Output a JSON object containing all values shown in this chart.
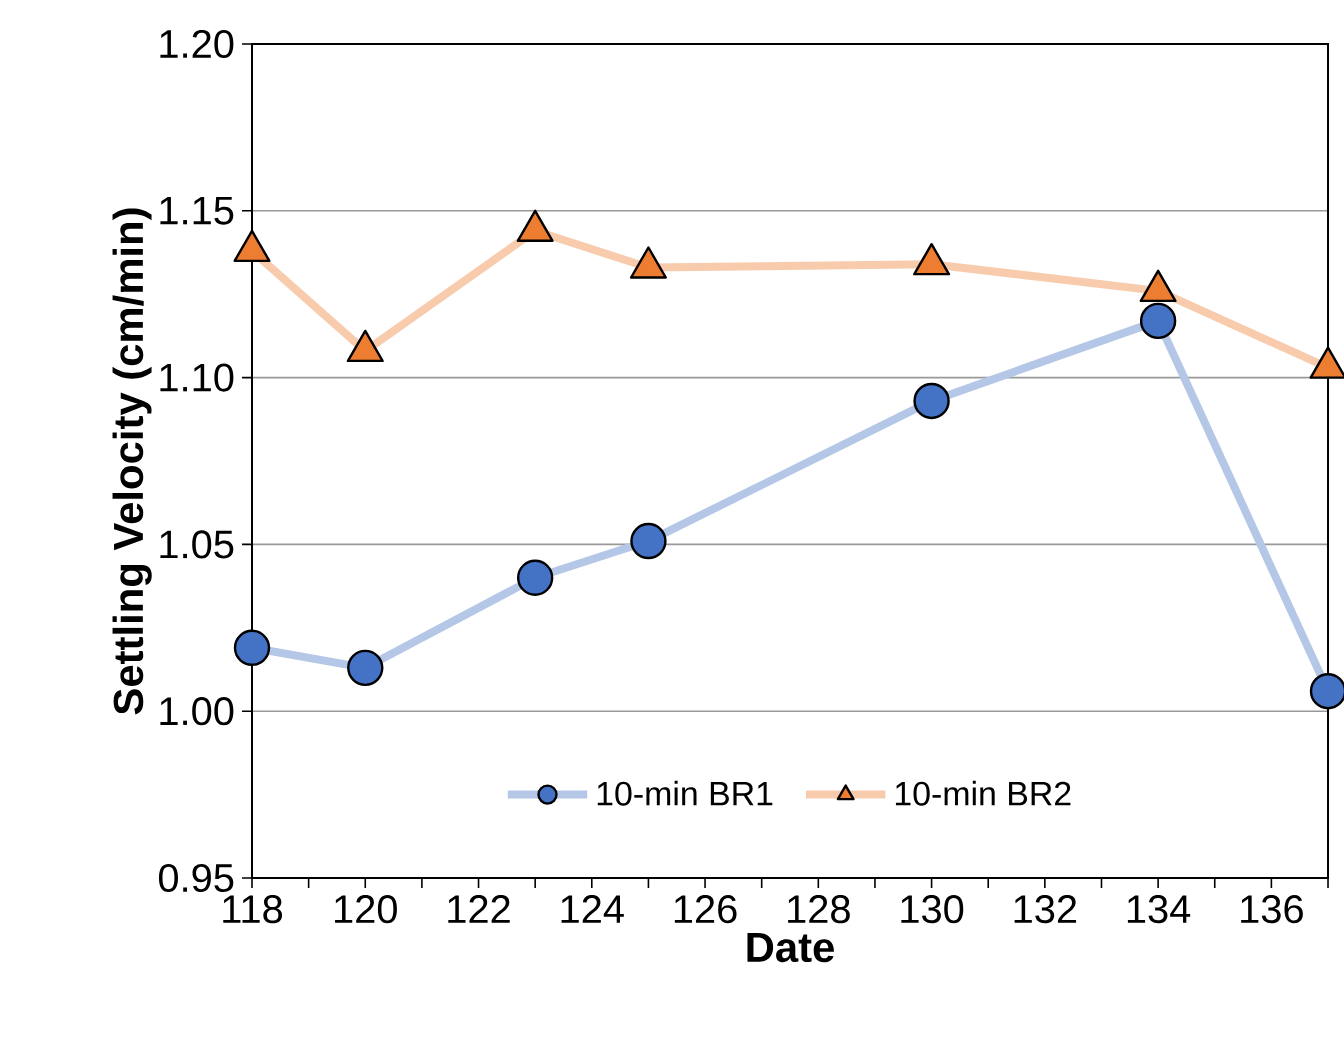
{
  "chart_data": {
    "type": "line",
    "xlabel": "Date",
    "ylabel": "Settling Velocity (cm/min)",
    "x": [
      118,
      120,
      123,
      125,
      130,
      134,
      137
    ],
    "series": [
      {
        "name": "10-min BR1",
        "color": "#4472c4",
        "marker": "circle",
        "values": [
          1.019,
          1.013,
          1.04,
          1.051,
          1.093,
          1.117,
          1.006
        ]
      },
      {
        "name": "10-min BR2",
        "color": "#ed7d31",
        "marker": "triangle",
        "values": [
          1.138,
          1.108,
          1.144,
          1.133,
          1.134,
          1.126,
          1.103
        ]
      }
    ],
    "xlim": [
      118,
      137
    ],
    "xticks": [
      118,
      {
        "value": 119,
        "label": null
      },
      120,
      {
        "value": 121,
        "label": null
      },
      122,
      {
        "value": 123,
        "label": null
      },
      124,
      {
        "value": 125,
        "label": null
      },
      126,
      {
        "value": 127,
        "label": null
      },
      128,
      {
        "value": 129,
        "label": null
      },
      130,
      {
        "value": 131,
        "label": null
      },
      132,
      {
        "value": 133,
        "label": null
      },
      134,
      {
        "value": 135,
        "label": null
      },
      136,
      {
        "value": 137,
        "label": null
      }
    ],
    "ylim": [
      0.95,
      1.2
    ],
    "yticks": [
      {
        "value": 0.95,
        "label": "0.95"
      },
      {
        "value": 1.0,
        "label": "1.00"
      },
      {
        "value": 1.05,
        "label": "1.05"
      },
      {
        "value": 1.1,
        "label": "1.10"
      },
      {
        "value": 1.15,
        "label": "1.15"
      },
      {
        "value": 1.2,
        "label": "1.20"
      }
    ],
    "grid": "y",
    "legend": "bottom",
    "line_style": "solid"
  }
}
